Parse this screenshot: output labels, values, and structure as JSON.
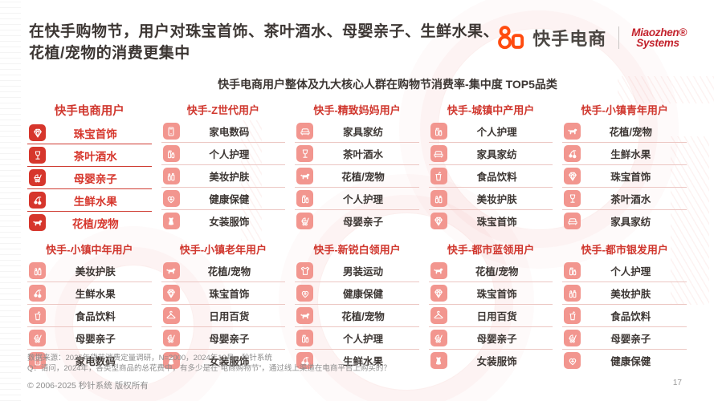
{
  "page": {
    "title_line1": "在快手购物节，用户对珠宝首饰、茶叶酒水、母婴亲子、生鲜水果、",
    "title_line2": "花植/宠物的消费更集中",
    "subtitle": "快手电商用户整体及九大核心人群在购物节消费率-集中度 TOP5品类",
    "page_number": "17"
  },
  "brand": {
    "kuaishou_label": "快手电商",
    "miaozhen_line1": "Miaozhen®",
    "miaozhen_line2": "Systems"
  },
  "colors": {
    "accent_red": "#d0372e",
    "highlight_icon_red": "#d6362c",
    "icon_pink": "#f2968f",
    "kuaishou_orange": "#ff4b0f",
    "miaozhen_red": "#c3232d",
    "title_dark": "#3c3633"
  },
  "groups": [
    {
      "title": "快手电商用户",
      "highlighted": true,
      "items": [
        {
          "icon": "jewelry",
          "label": "珠宝首饰"
        },
        {
          "icon": "tea-wine",
          "label": "茶叶酒水"
        },
        {
          "icon": "mother-baby",
          "label": "母婴亲子"
        },
        {
          "icon": "fresh-fruit",
          "label": "生鲜水果"
        },
        {
          "icon": "flower-pet",
          "label": "花植/宠物"
        }
      ]
    },
    {
      "title": "快手-Z世代用户",
      "highlighted": false,
      "items": [
        {
          "icon": "appliance",
          "label": "家电数码"
        },
        {
          "icon": "personal-care",
          "label": "个人护理"
        },
        {
          "icon": "beauty",
          "label": "美妆护肤"
        },
        {
          "icon": "health",
          "label": "健康保健"
        },
        {
          "icon": "dress",
          "label": "女装服饰"
        }
      ]
    },
    {
      "title": "快手-精致妈妈用户",
      "highlighted": false,
      "items": [
        {
          "icon": "furniture",
          "label": "家具家纺"
        },
        {
          "icon": "tea-wine",
          "label": "茶叶酒水"
        },
        {
          "icon": "flower-pet",
          "label": "花植/宠物"
        },
        {
          "icon": "personal-care",
          "label": "个人护理"
        },
        {
          "icon": "mother-baby",
          "label": "母婴亲子"
        }
      ]
    },
    {
      "title": "快手-城镇中产用户",
      "highlighted": false,
      "items": [
        {
          "icon": "personal-care",
          "label": "个人护理"
        },
        {
          "icon": "furniture",
          "label": "家具家纺"
        },
        {
          "icon": "food-drink",
          "label": "食品饮料"
        },
        {
          "icon": "beauty",
          "label": "美妆护肤"
        },
        {
          "icon": "jewelry",
          "label": "珠宝首饰"
        }
      ]
    },
    {
      "title": "快手-小镇青年用户",
      "highlighted": false,
      "items": [
        {
          "icon": "flower-pet",
          "label": "花植/宠物"
        },
        {
          "icon": "fresh-fruit",
          "label": "生鲜水果"
        },
        {
          "icon": "jewelry",
          "label": "珠宝首饰"
        },
        {
          "icon": "tea-wine",
          "label": "茶叶酒水"
        },
        {
          "icon": "furniture",
          "label": "家具家纺"
        }
      ]
    },
    {
      "title": "快手-小镇中年用户",
      "highlighted": false,
      "items": [
        {
          "icon": "beauty",
          "label": "美妆护肤"
        },
        {
          "icon": "fresh-fruit",
          "label": "生鲜水果"
        },
        {
          "icon": "food-drink",
          "label": "食品饮料"
        },
        {
          "icon": "mother-baby",
          "label": "母婴亲子"
        },
        {
          "icon": "appliance",
          "label": "家电数码"
        }
      ]
    },
    {
      "title": "快手-小镇老年用户",
      "highlighted": false,
      "items": [
        {
          "icon": "flower-pet",
          "label": "花植/宠物"
        },
        {
          "icon": "jewelry",
          "label": "珠宝首饰"
        },
        {
          "icon": "daily-goods",
          "label": "日用百货"
        },
        {
          "icon": "mother-baby",
          "label": "母婴亲子"
        },
        {
          "icon": "dress",
          "label": "女装服饰"
        }
      ]
    },
    {
      "title": "快手-新锐白领用户",
      "highlighted": false,
      "items": [
        {
          "icon": "menswear",
          "label": "男装运动"
        },
        {
          "icon": "health",
          "label": "健康保健"
        },
        {
          "icon": "flower-pet",
          "label": "花植/宠物"
        },
        {
          "icon": "personal-care",
          "label": "个人护理"
        },
        {
          "icon": "fresh-fruit",
          "label": "生鲜水果"
        }
      ]
    },
    {
      "title": "快手-都市蓝领用户",
      "highlighted": false,
      "items": [
        {
          "icon": "flower-pet",
          "label": "花植/宠物"
        },
        {
          "icon": "jewelry",
          "label": "珠宝首饰"
        },
        {
          "icon": "daily-goods",
          "label": "日用百货"
        },
        {
          "icon": "mother-baby",
          "label": "母婴亲子"
        },
        {
          "icon": "dress",
          "label": "女装服饰"
        }
      ]
    },
    {
      "title": "快手-都市银发用户",
      "highlighted": false,
      "items": [
        {
          "icon": "personal-care",
          "label": "个人护理"
        },
        {
          "icon": "beauty",
          "label": "美妆护肤"
        },
        {
          "icon": "food-drink",
          "label": "食品饮料"
        },
        {
          "icon": "mother-baby",
          "label": "母婴亲子"
        },
        {
          "icon": "health",
          "label": "健康保健"
        }
      ]
    }
  ],
  "footer": {
    "source": "数据来源：2025年货节消费定量调研，N=2000，2024年12月，秒针系统",
    "question": "Q：请问，2024年，各类型商品的总花费中，有多少是在“电商购物节”，通过线上渠道在电商平台上购买的？",
    "copyright": "© 2006-2025 秒针系统 版权所有"
  }
}
